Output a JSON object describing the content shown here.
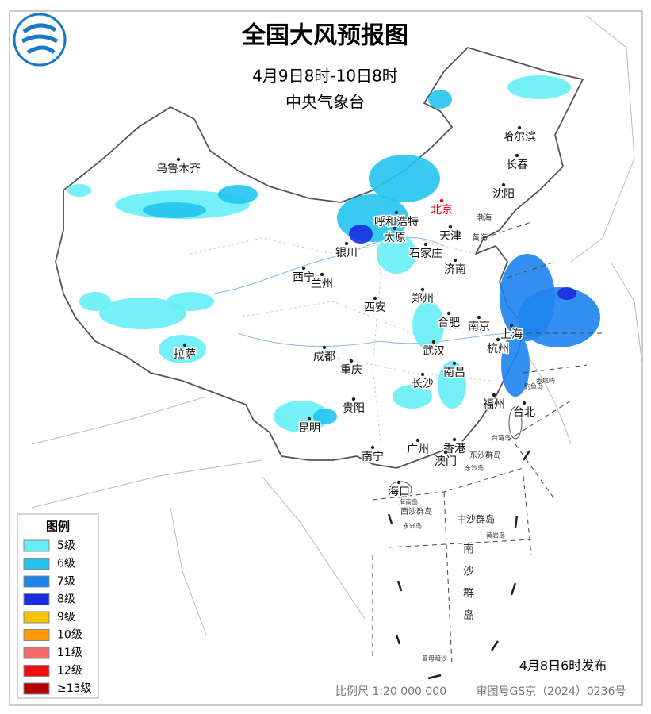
{
  "header": {
    "title": "全国大风预报图",
    "period": "4月9日8时-10日8时",
    "issuer": "中央气象台"
  },
  "cities": [
    "乌鲁木齐",
    "哈尔滨",
    "长春",
    "沈阳",
    "北京",
    "呼和浩特",
    "天津",
    "太原",
    "石家庄",
    "银川",
    "济南",
    "西宁",
    "兰州",
    "郑州",
    "西安",
    "合肥",
    "南京",
    "上海",
    "杭州",
    "拉萨",
    "成都",
    "武汉",
    "重庆",
    "南昌",
    "长沙",
    "福州",
    "台北",
    "贵阳",
    "昆明",
    "南宁",
    "广州",
    "香港",
    "澳门",
    "海口"
  ],
  "places": [
    "渤海",
    "黄海",
    "钓鱼岛",
    "赤尾屿",
    "台湾岛",
    "东沙群岛",
    "东沙岛",
    "海南岛",
    "西沙群岛",
    "永兴岛",
    "中沙群岛",
    "黄岩岛",
    "南沙群岛",
    "曾母暗沙"
  ],
  "legend": {
    "title": "图例",
    "items": [
      {
        "label": "5级",
        "color": "#66eef5"
      },
      {
        "label": "6级",
        "color": "#22c4f0"
      },
      {
        "label": "7级",
        "color": "#1e84ee"
      },
      {
        "label": "8级",
        "color": "#1a2ee0"
      },
      {
        "label": "9级",
        "color": "#f5c400"
      },
      {
        "label": "10级",
        "color": "#ff9a00"
      },
      {
        "label": "11级",
        "color": "#f56a6a"
      },
      {
        "label": "12级",
        "color": "#ee1010"
      },
      {
        "label": "≥13级",
        "color": "#b00000"
      }
    ]
  },
  "footer": {
    "release": "4月8日6时发布",
    "scale": "比例尺 1:20 000 000",
    "approval": "审图号GS京（2024）0236号"
  }
}
